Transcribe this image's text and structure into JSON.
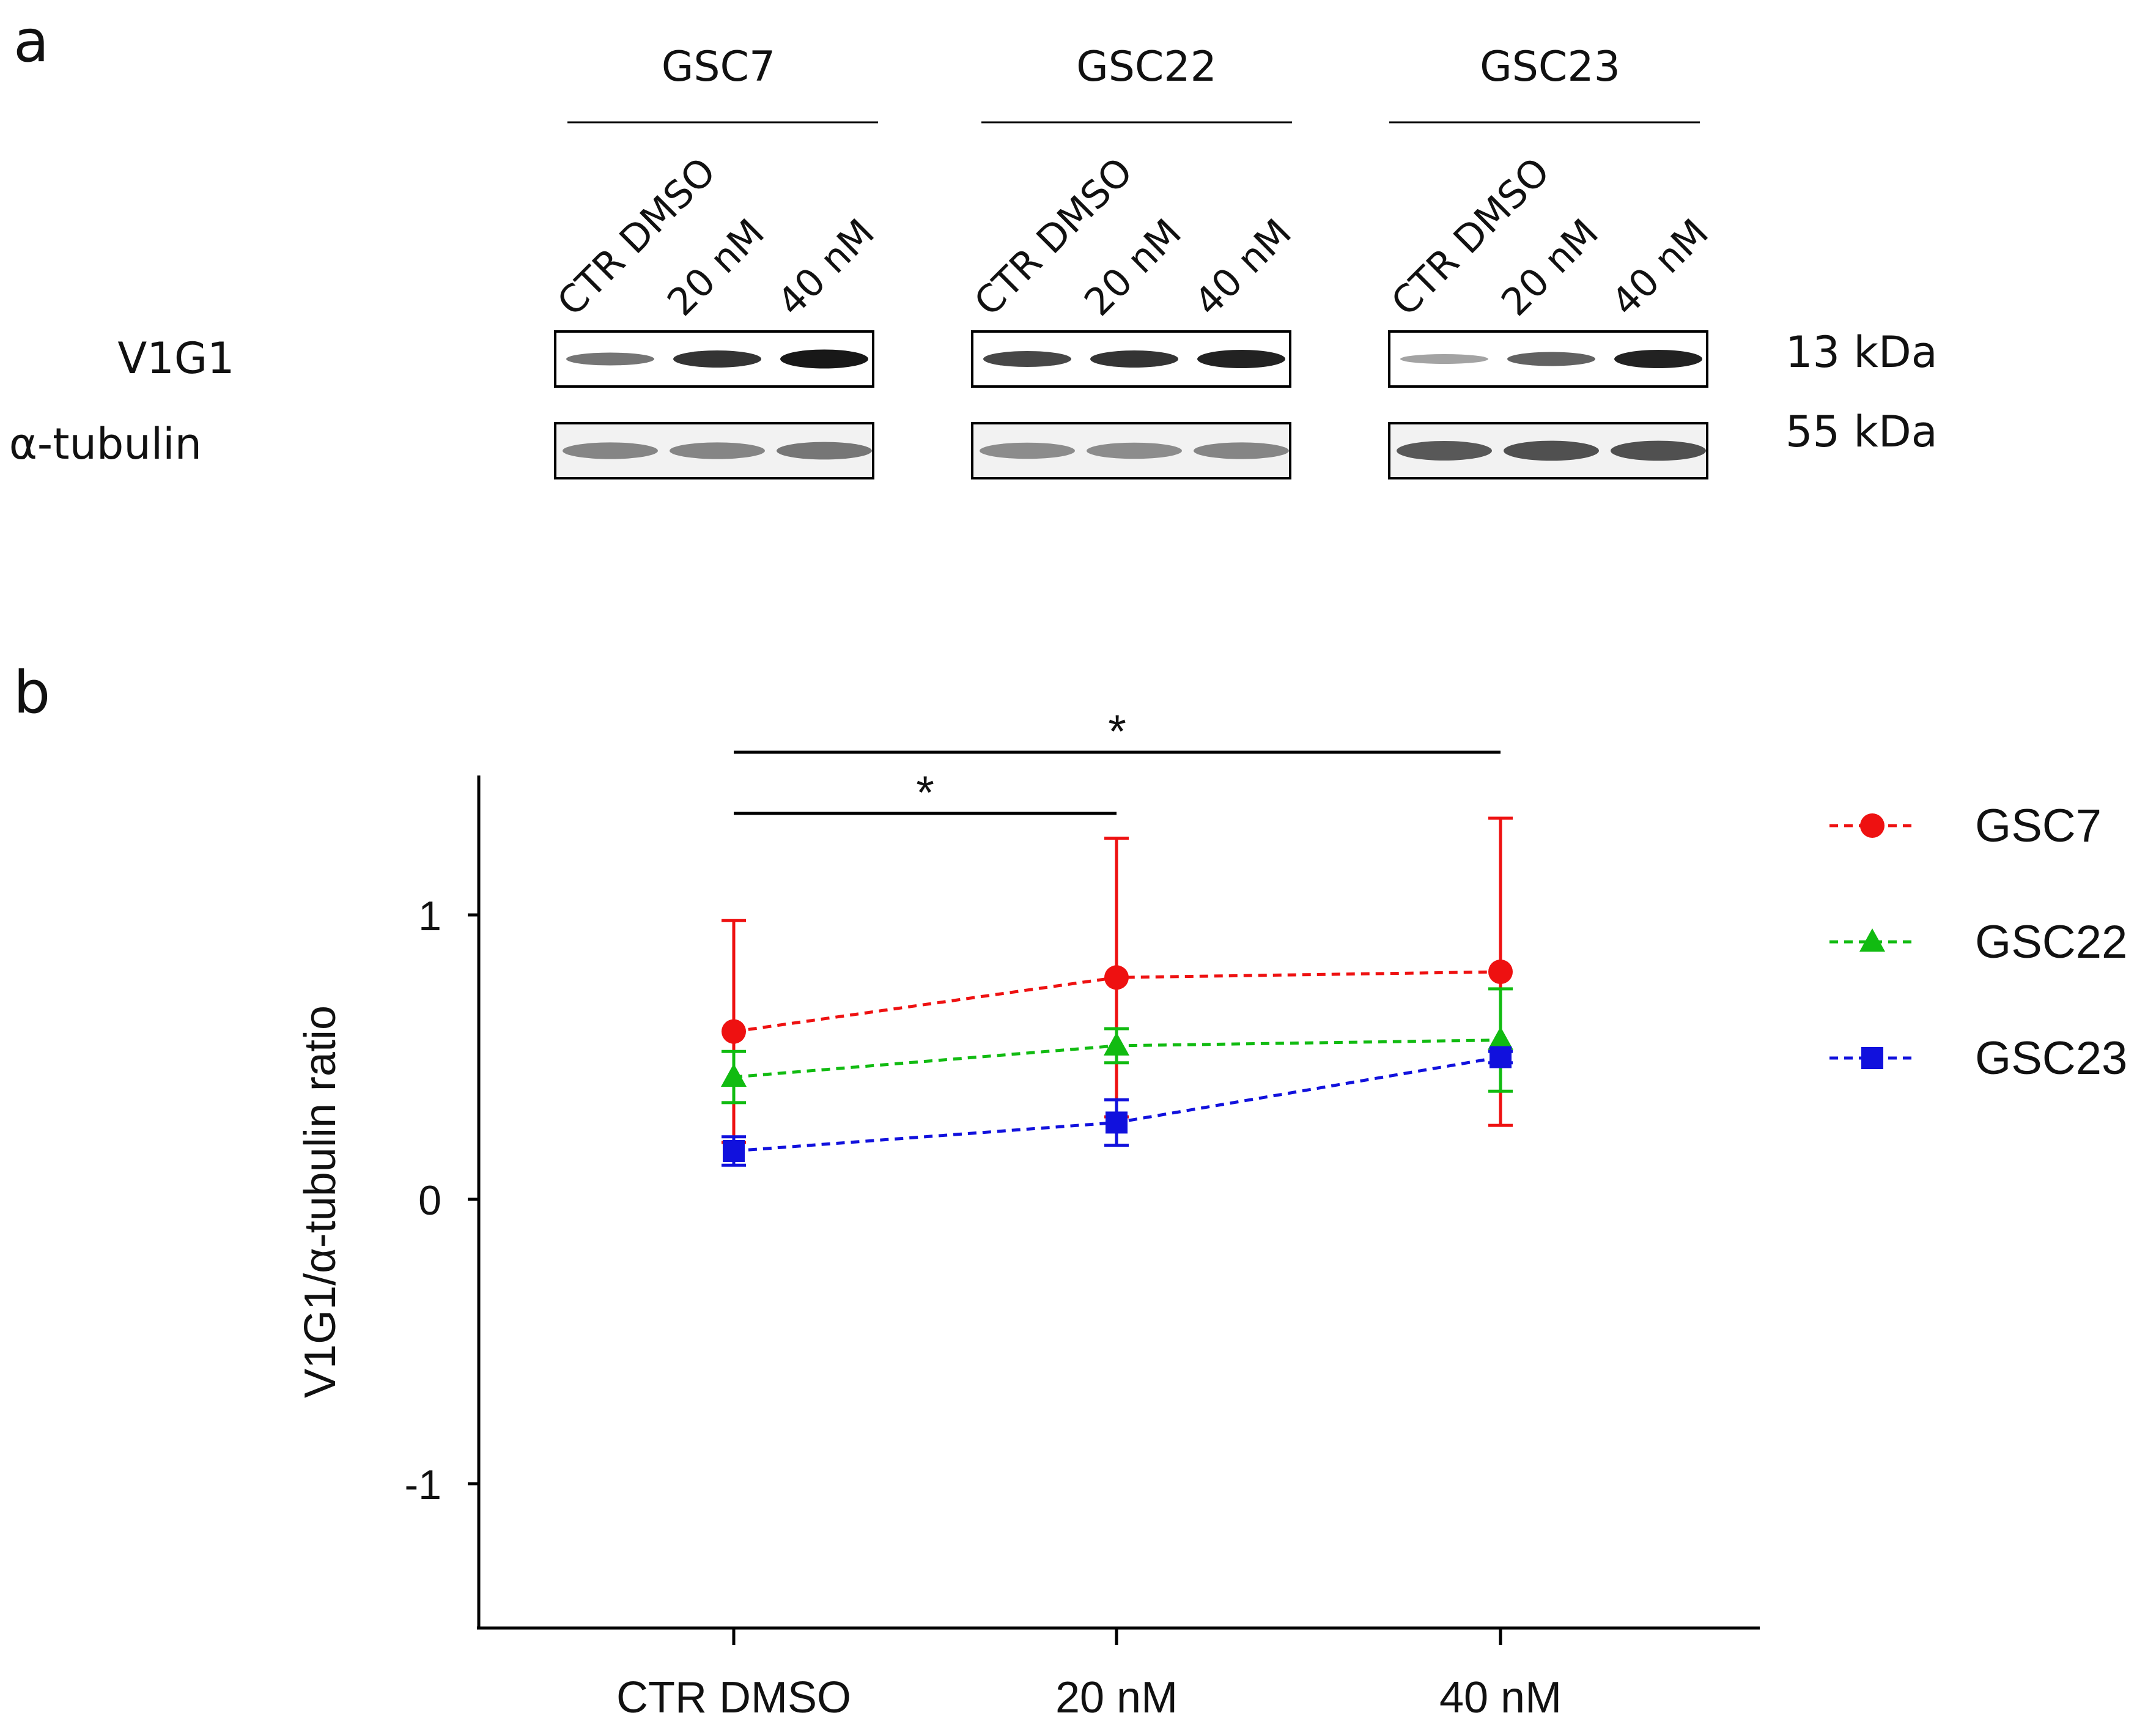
{
  "panel_a": {
    "label": "a",
    "row_labels": [
      "V1G1",
      "α-tubulin"
    ],
    "kda_labels": [
      "13 kDa",
      "55 kDa"
    ],
    "groups": [
      {
        "name": "GSC7",
        "lanes": [
          "CTR DMSO",
          "20 nM",
          "40 nM"
        ],
        "v1g1_intensity": [
          0.45,
          0.8,
          0.95
        ],
        "tubulin_intensity": [
          0.45,
          0.45,
          0.55
        ]
      },
      {
        "name": "GSC22",
        "lanes": [
          "CTR DMSO",
          "20 nM",
          "40 nM"
        ],
        "v1g1_intensity": [
          0.7,
          0.8,
          0.9
        ],
        "tubulin_intensity": [
          0.4,
          0.4,
          0.45
        ]
      },
      {
        "name": "GSC23",
        "lanes": [
          "CTR DMSO",
          "20 nM",
          "40 nM"
        ],
        "v1g1_intensity": [
          0.2,
          0.55,
          0.9
        ],
        "tubulin_intensity": [
          0.75,
          0.8,
          0.8
        ]
      }
    ]
  },
  "panel_b": {
    "label": "b"
  },
  "chart_data": {
    "type": "line",
    "title": "",
    "xlabel": "",
    "ylabel": "V1G1/α-tubulin ratio",
    "categories": [
      "CTR DMSO",
      "20 nM",
      "40 nM"
    ],
    "ylim": [
      -1.5,
      1.5
    ],
    "yticks": [
      -1,
      0,
      1
    ],
    "ytick_labels": [
      "-1",
      "0",
      "1"
    ],
    "grid": false,
    "legend_position": "right",
    "series": [
      {
        "name": "GSC7",
        "color": "#ee1111",
        "marker": "circle",
        "values": [
          0.59,
          0.78,
          0.8
        ],
        "err_upper": [
          0.98,
          1.27,
          1.34
        ],
        "err_lower": [
          0.2,
          0.29,
          0.26
        ]
      },
      {
        "name": "GSC22",
        "color": "#11bb11",
        "marker": "triangle",
        "values": [
          0.43,
          0.54,
          0.56
        ],
        "err_upper": [
          0.52,
          0.6,
          0.74
        ],
        "err_lower": [
          0.34,
          0.48,
          0.38
        ]
      },
      {
        "name": "GSC23",
        "color": "#1111dd",
        "marker": "square",
        "values": [
          0.17,
          0.27,
          0.5
        ],
        "err_upper": [
          0.22,
          0.35,
          0.52
        ],
        "err_lower": [
          0.12,
          0.19,
          0.48
        ]
      }
    ],
    "significance": [
      {
        "from": "CTR DMSO",
        "to": "20 nM",
        "label": "*"
      },
      {
        "from": "CTR DMSO",
        "to": "40 nM",
        "label": "*"
      }
    ]
  }
}
